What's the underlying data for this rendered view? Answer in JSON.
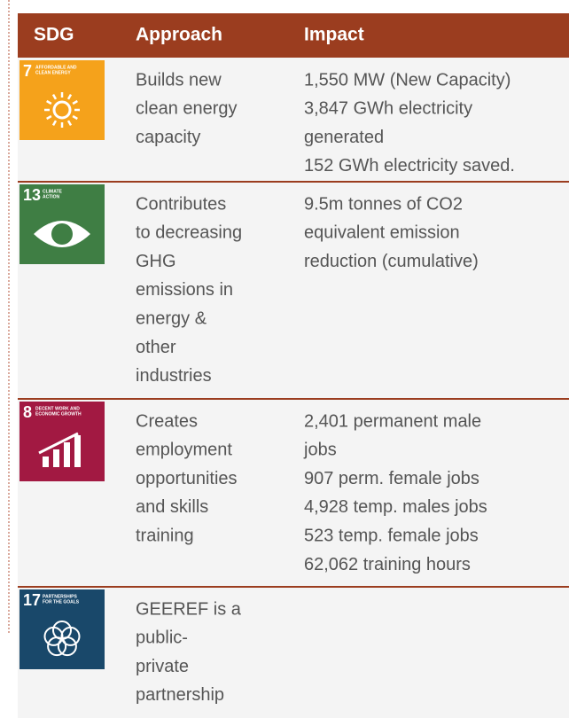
{
  "table": {
    "header": [
      "SDG",
      "Approach",
      "Impact"
    ],
    "rows": [
      {
        "sdg": {
          "number": "7",
          "label": [
            "AFFORDABLE AND",
            "CLEAN ENERGY"
          ]
        },
        "approach": [
          "Builds new",
          "clean energy",
          "capacity"
        ],
        "impact": [
          "1,550 MW (New Capacity)",
          "3,847 GWh electricity",
          "generated",
          "152 GWh electricity saved."
        ]
      },
      {
        "sdg": {
          "number": "13",
          "label": [
            "CLIMATE",
            "ACTION"
          ]
        },
        "approach": [
          "Contributes",
          "to decreasing",
          "GHG",
          "emissions in",
          "energy &",
          "other",
          "industries"
        ],
        "impact": [
          "9.5m tonnes of CO2",
          "equivalent emission",
          "reduction (cumulative)"
        ]
      },
      {
        "sdg": {
          "number": "8",
          "label": [
            "DECENT WORK AND",
            "ECONOMIC GROWTH"
          ]
        },
        "approach": [
          "Creates",
          "employment",
          "opportunities",
          "and skills",
          "training"
        ],
        "impact": [
          "2,401 permanent male",
          "jobs",
          "907 perm. female jobs",
          "4,928 temp. males jobs",
          "523 temp. female jobs",
          "62,062 training hours"
        ]
      },
      {
        "sdg": {
          "number": "17",
          "label": [
            "PARTNERSHIPS",
            "FOR THE GOALS"
          ]
        },
        "approach": [
          "GEEREF is a",
          "public-",
          "private",
          "partnership"
        ],
        "impact": []
      }
    ]
  }
}
